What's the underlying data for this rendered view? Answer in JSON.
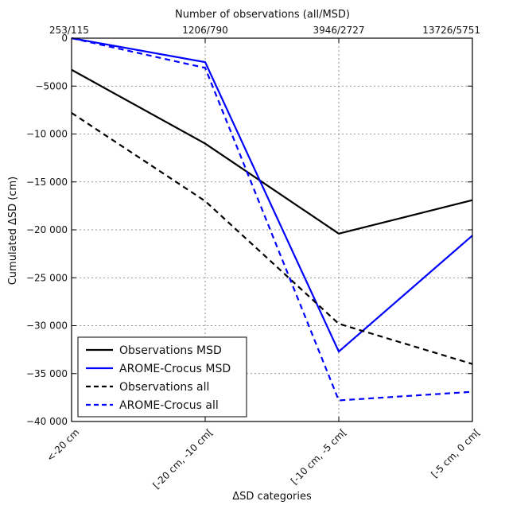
{
  "chart_data": {
    "type": "line",
    "top_axis_title": "Number of observations (all/MSD)",
    "top_ticks": [
      "253/115",
      "1206/790",
      "3946/2727",
      "13726/5751"
    ],
    "xlabel": "ΔSD categories",
    "ylabel": "Cumulated ΔSD (cm)",
    "categories": [
      "<-20 cm",
      "[-20 cm, -10 cm[",
      "[-10 cm, -5 cm[",
      "[-5 cm, 0 cm["
    ],
    "ylim": [
      -40000,
      0
    ],
    "yticks": [
      0,
      -5000,
      -10000,
      -15000,
      -20000,
      -25000,
      -30000,
      -35000,
      -40000
    ],
    "ytick_labels": [
      "0",
      "−5000",
      "−10 000",
      "−15 000",
      "−20 000",
      "−25 000",
      "−30 000",
      "−35 000",
      "−40 000"
    ],
    "grid": true,
    "legend_position": "lower-left",
    "series": [
      {
        "name": "Observations MSD",
        "color": "#000000",
        "dash": "solid",
        "values": [
          -3300,
          -11000,
          -20400,
          -16900
        ]
      },
      {
        "name": "AROME-Crocus MSD",
        "color": "#0000ff",
        "dash": "solid",
        "values": [
          0,
          -2500,
          -32700,
          -20600
        ]
      },
      {
        "name": "Observations all",
        "color": "#000000",
        "dash": "dashed",
        "values": [
          -7800,
          -17000,
          -29800,
          -34000
        ]
      },
      {
        "name": "AROME-Crocus all",
        "color": "#0000ff",
        "dash": "dashed",
        "values": [
          0,
          -3100,
          -37800,
          -36900
        ]
      }
    ]
  }
}
